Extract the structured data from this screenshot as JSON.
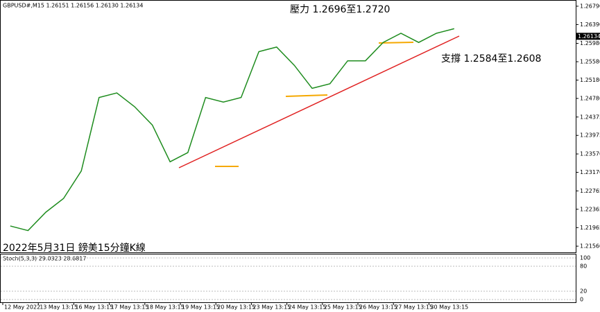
{
  "header": "GBPUSD#,M15  1.26151 1.26156 1.26130 1.26134",
  "annotations": {
    "resistance": "壓力 1.2696至1.2720",
    "support": "支撐 1.2584至1.2608",
    "caption": "2022年5月31日 鎊美15分鐘K線"
  },
  "current_price": {
    "value": 1.26134,
    "label": "1.26134"
  },
  "stoch": {
    "title": "Stoch(5,3,3) 29.0323 28.6817",
    "ylim": [
      0,
      100
    ],
    "yticks": [
      100,
      80,
      20,
      0
    ]
  },
  "chart_data": {
    "type": "line",
    "categories": [
      "12 May 2022",
      null,
      "13 May 13:15",
      null,
      "16 May 13:15",
      null,
      "17 May 13:15",
      null,
      "18 May 13:15",
      null,
      "19 May 13:15",
      null,
      "20 May 13:15",
      null,
      "23 May 13:15",
      null,
      "24 May 13:15",
      null,
      "25 May 13:15",
      null,
      "26 May 13:15",
      null,
      "27 May 13:15",
      null,
      "30 May 13:15",
      null
    ],
    "series": [
      {
        "name": "GBPUSD#",
        "color": "#1e8c1e",
        "values": [
          1.22,
          1.219,
          1.223,
          1.226,
          1.232,
          1.248,
          1.249,
          1.246,
          1.242,
          1.234,
          1.236,
          1.248,
          1.247,
          1.248,
          1.258,
          1.259,
          1.255,
          1.25,
          1.251,
          1.256,
          1.256,
          1.26,
          1.262,
          1.26,
          1.262,
          1.263
        ]
      }
    ],
    "ylim": [
      1.2141,
      1.2691
    ],
    "yticks": [
      {
        "value": 1.2679,
        "label": "1.26790"
      },
      {
        "value": 1.2639,
        "label": "1.26390"
      },
      {
        "value": 1.2598,
        "label": "1.25980"
      },
      {
        "value": 1.2558,
        "label": "1.25580"
      },
      {
        "value": 1.2518,
        "label": "1.25180"
      },
      {
        "value": 1.2478,
        "label": "1.24780"
      },
      1.24375,
      1.23975,
      {
        "value": 1.2357,
        "label": "1.23570"
      },
      {
        "value": 1.2317,
        "label": "1.23170"
      },
      1.22765,
      1.22365,
      1.21965,
      {
        "value": 1.2156,
        "label": "1.21560"
      }
    ]
  }
}
